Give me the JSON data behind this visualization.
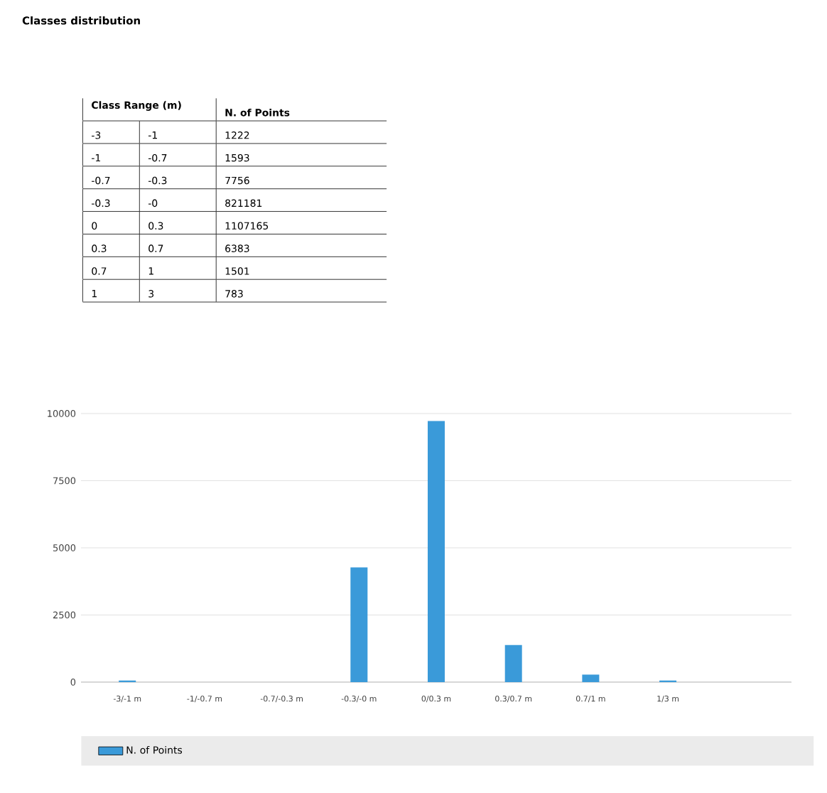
{
  "chart_data": {
    "type": "bar",
    "title": "Classes distribution",
    "annotations": [
      "Class Range (m)",
      "N. of Points",
      "-3",
      "-1",
      "1222",
      "-1",
      "-0.7",
      "1593",
      "-0.7",
      "-0.3",
      "7756",
      "-0.3",
      "-0",
      "821181",
      "0",
      "0.3",
      "1107165",
      "0.3",
      "0.7",
      "6383",
      "0.7",
      "1",
      "1501",
      "1",
      "3",
      "783"
    ],
    "categories": [
      "-3/-1 m",
      "-1/-0.7 m",
      "-0.7/-0.3 m",
      "-0.3/-0 m",
      "0/0.3 m",
      "0.3/0.7 m",
      "0.7/1 m",
      "1/3 m"
    ],
    "series": [
      {
        "name": "N. of Points",
        "color": "#3a9ad9",
        "values": [
          60,
          0,
          0,
          4270,
          9720,
          1380,
          280,
          60
        ]
      }
    ],
    "ylim": [
      0,
      10000
    ],
    "yticks": [
      0,
      2500,
      5000,
      7500,
      10000
    ],
    "grid": "y",
    "legend": "bottom"
  }
}
